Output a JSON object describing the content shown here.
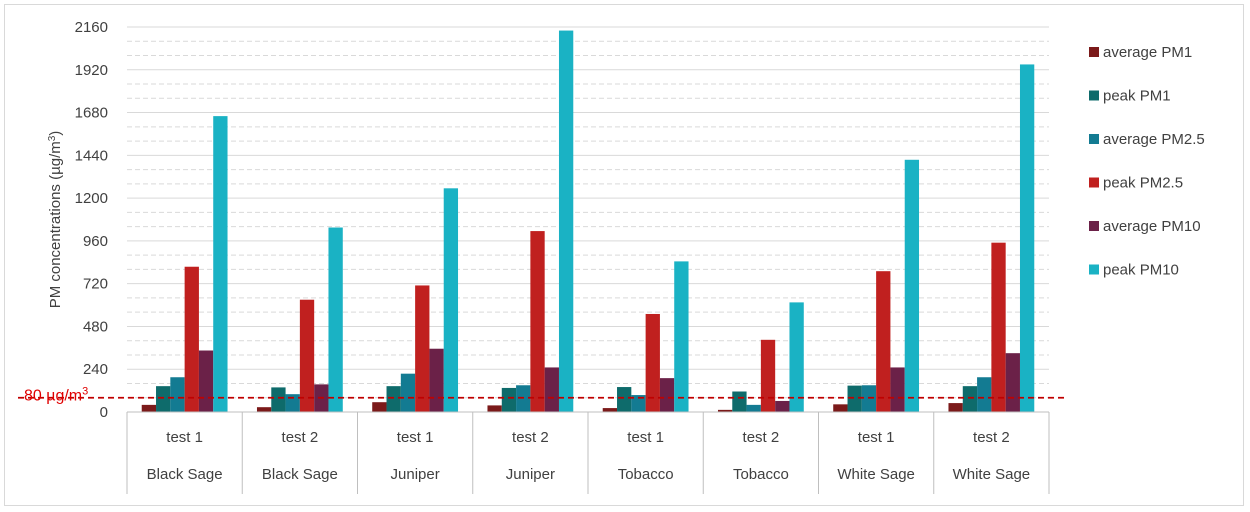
{
  "chart_data": {
    "type": "bar",
    "ylabel": "PM concentrations (µg/m³)",
    "ylabel_parts": {
      "main": "PM concentrations (µg/m",
      "sup": "3",
      "tail": ")"
    },
    "ylim": [
      0,
      2160
    ],
    "yticks": [
      0,
      240,
      480,
      720,
      960,
      1200,
      1440,
      1680,
      1920,
      2160
    ],
    "minor_grid_step": 80,
    "grid": true,
    "legend_position": "right",
    "categories": [
      {
        "test": "test 1",
        "group": "Black Sage"
      },
      {
        "test": "test 2",
        "group": "Black Sage"
      },
      {
        "test": "test 1",
        "group": "Juniper"
      },
      {
        "test": "test 2",
        "group": "Juniper"
      },
      {
        "test": "test 1",
        "group": "Tobacco"
      },
      {
        "test": "test 2",
        "group": "Tobacco"
      },
      {
        "test": "test 1",
        "group": "White Sage"
      },
      {
        "test": "test 2",
        "group": "White Sage"
      }
    ],
    "series": [
      {
        "name": "average PM1",
        "color": "#7b1a1a",
        "values": [
          40,
          27,
          55,
          37,
          22,
          12,
          43,
          50
        ]
      },
      {
        "name": "peak PM1",
        "color": "#0e6b6b",
        "values": [
          145,
          138,
          145,
          135,
          140,
          115,
          148,
          145
        ]
      },
      {
        "name": "average PM2.5",
        "color": "#137b92",
        "values": [
          195,
          100,
          215,
          150,
          95,
          40,
          150,
          195
        ]
      },
      {
        "name": "peak PM2.5",
        "color": "#c0201f",
        "values": [
          815,
          630,
          710,
          1015,
          550,
          405,
          790,
          950
        ]
      },
      {
        "name": "average PM10",
        "color": "#6b2148",
        "values": [
          345,
          155,
          355,
          250,
          190,
          62,
          250,
          330
        ]
      },
      {
        "name": "peak PM10",
        "color": "#1ab2c4",
        "values": [
          1660,
          1035,
          1255,
          2140,
          845,
          615,
          1415,
          1950
        ]
      }
    ],
    "reference_line": {
      "value": 80,
      "label_main": "80 µg/m",
      "label_sup": "3",
      "color": "#c00000"
    }
  }
}
